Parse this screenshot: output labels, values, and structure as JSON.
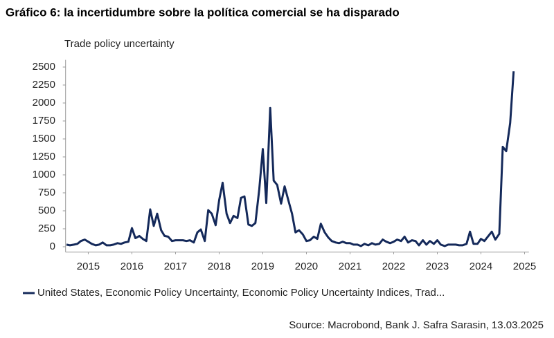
{
  "chart_data": {
    "type": "line",
    "title": "Gráfico 6: la incertidumbre sobre la política comercial se ha disparado",
    "y_label": "Trade policy uncertainty",
    "source": "Source: Macrobond, Bank J. Safra Sarasin, 13.03.2025",
    "x": [
      2015,
      2015.08,
      2015.17,
      2015.25,
      2015.33,
      2015.42,
      2015.5,
      2015.58,
      2015.67,
      2015.75,
      2015.83,
      2015.92,
      2016,
      2016.08,
      2016.17,
      2016.25,
      2016.33,
      2016.42,
      2016.5,
      2016.58,
      2016.67,
      2016.75,
      2016.83,
      2016.92,
      2017,
      2017.08,
      2017.17,
      2017.25,
      2017.33,
      2017.42,
      2017.5,
      2017.58,
      2017.67,
      2017.75,
      2017.83,
      2017.92,
      2018,
      2018.08,
      2018.17,
      2018.25,
      2018.33,
      2018.42,
      2018.5,
      2018.58,
      2018.67,
      2018.75,
      2018.83,
      2018.92,
      2019,
      2019.08,
      2019.17,
      2019.25,
      2019.33,
      2019.42,
      2019.5,
      2019.58,
      2019.67,
      2019.75,
      2019.83,
      2019.92,
      2020,
      2020.08,
      2020.17,
      2020.25,
      2020.33,
      2020.42,
      2020.5,
      2020.58,
      2020.67,
      2020.75,
      2020.83,
      2020.92,
      2021,
      2021.08,
      2021.17,
      2021.25,
      2021.33,
      2021.42,
      2021.5,
      2021.58,
      2021.67,
      2021.75,
      2021.83,
      2021.92,
      2022,
      2022.08,
      2022.17,
      2022.25,
      2022.33,
      2022.42,
      2022.5,
      2022.58,
      2022.67,
      2022.75,
      2022.83,
      2022.92,
      2023,
      2023.08,
      2023.17,
      2023.25,
      2023.33,
      2023.42,
      2023.5,
      2023.58,
      2023.67,
      2023.75,
      2023.83,
      2023.92,
      2024,
      2024.08,
      2024.17,
      2024.25,
      2024.33,
      2024.42,
      2024.5,
      2024.58,
      2024.67,
      2024.75,
      2024.83,
      2024.92,
      2025,
      2025.08,
      2025.17,
      2025.25
    ],
    "series": [
      {
        "name": "United States, Economic Policy Uncertainty, Economic Policy Uncertainty Indices, Trad...",
        "color": "#14295a",
        "values": [
          30,
          20,
          30,
          40,
          80,
          100,
          70,
          40,
          20,
          30,
          60,
          20,
          20,
          30,
          50,
          40,
          60,
          70,
          260,
          120,
          150,
          110,
          80,
          520,
          290,
          460,
          230,
          150,
          140,
          80,
          90,
          90,
          90,
          80,
          90,
          60,
          200,
          240,
          80,
          510,
          460,
          300,
          650,
          890,
          460,
          330,
          430,
          400,
          680,
          700,
          310,
          290,
          330,
          800,
          1360,
          610,
          1930,
          920,
          860,
          600,
          840,
          660,
          460,
          200,
          230,
          170,
          80,
          90,
          140,
          110,
          320,
          200,
          130,
          80,
          60,
          50,
          70,
          50,
          50,
          30,
          30,
          10,
          40,
          20,
          50,
          30,
          40,
          100,
          70,
          50,
          70,
          100,
          80,
          140,
          60,
          90,
          80,
          20,
          90,
          30,
          80,
          40,
          90,
          30,
          10,
          30,
          30,
          30,
          20,
          20,
          40,
          210,
          40,
          40,
          110,
          80,
          150,
          210,
          100,
          180,
          1390,
          1330,
          1720,
          2440
        ]
      }
    ],
    "xlim": [
      2014.98,
      2025.6
    ],
    "xticks": [
      {
        "value": 2015.5,
        "label": "2015"
      },
      {
        "value": 2016.5,
        "label": "2016"
      },
      {
        "value": 2017.5,
        "label": "2017"
      },
      {
        "value": 2018.5,
        "label": "2018"
      },
      {
        "value": 2019.5,
        "label": "2019"
      },
      {
        "value": 2020.5,
        "label": "2020"
      },
      {
        "value": 2021.5,
        "label": "2021"
      },
      {
        "value": 2022.5,
        "label": "2022"
      },
      {
        "value": 2023.5,
        "label": "2023"
      },
      {
        "value": 2024.5,
        "label": "2024"
      },
      {
        "value": 2025.5,
        "label": "2025"
      }
    ],
    "ylim": [
      -75,
      2600
    ],
    "yticks": [
      0,
      250,
      500,
      750,
      1000,
      1250,
      1500,
      1750,
      2000,
      2250,
      2500
    ],
    "grid": false,
    "legend": "bottom"
  }
}
